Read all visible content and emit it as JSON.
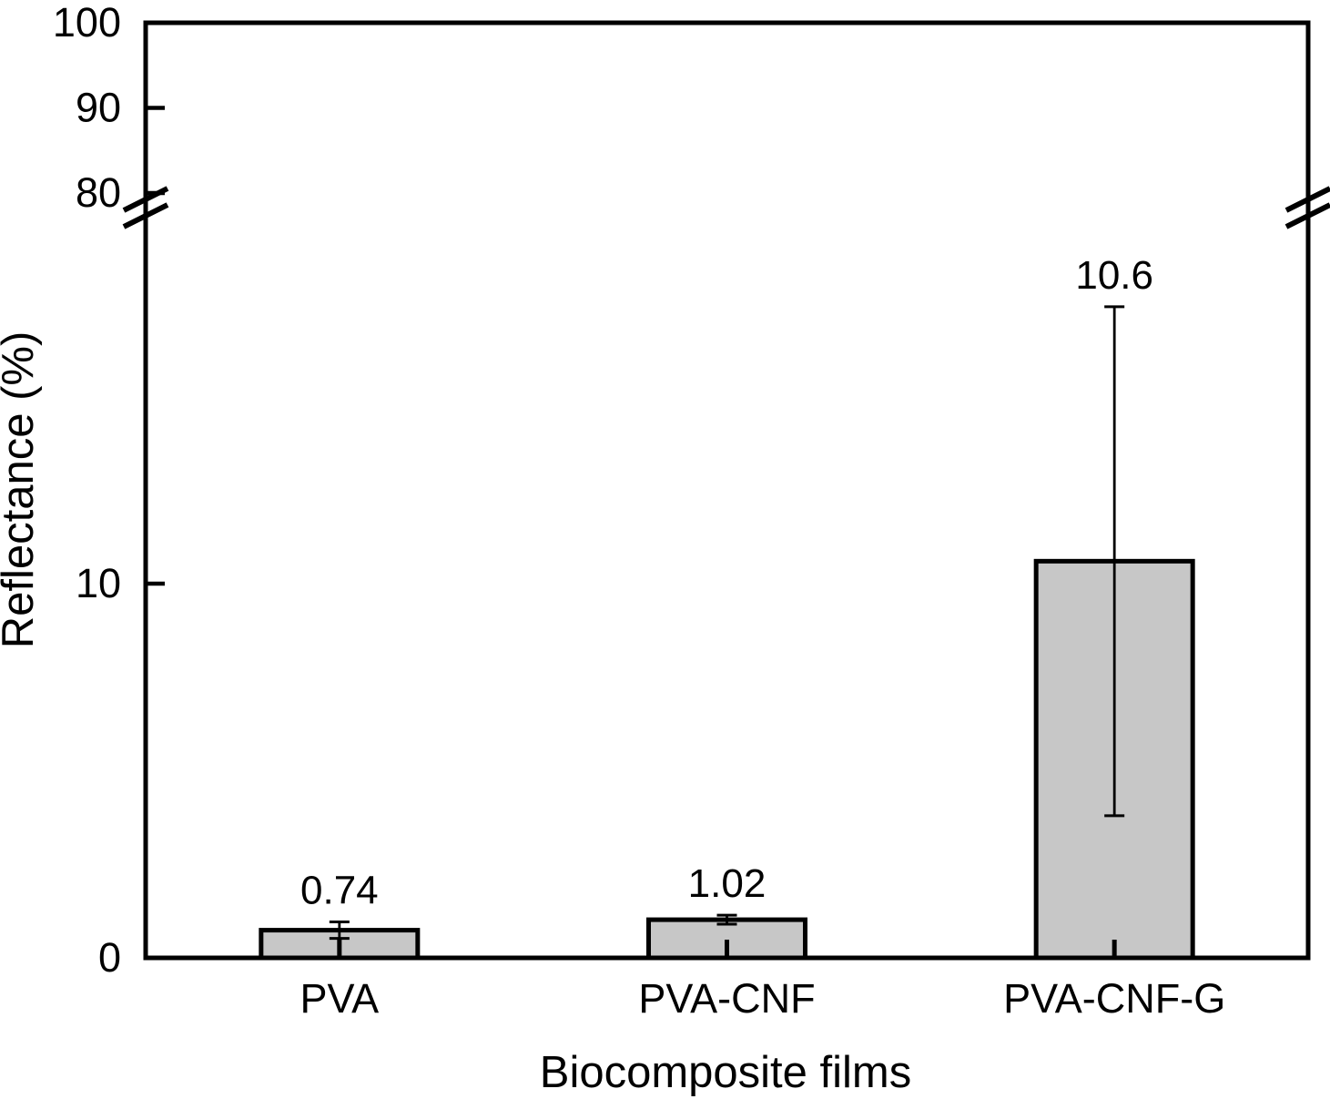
{
  "figure": {
    "background": "#ffffff",
    "ink_color": "#000000"
  },
  "chart_data": {
    "type": "bar",
    "title": "",
    "xlabel": "Biocomposite films",
    "ylabel": "Reflectance (%)",
    "categories": [
      "PVA",
      "PVA-CNF",
      "PVA-CNF-G"
    ],
    "values": [
      0.74,
      1.02,
      10.6
    ],
    "value_labels": [
      "0.74",
      "1.02",
      "10.6"
    ],
    "error_bars": [
      0.22,
      0.12,
      6.8
    ],
    "bar_fill": "#c7c7c7",
    "bar_edge": "#000000",
    "grid": false,
    "axis_break": {
      "enabled": true,
      "between": [
        20,
        80
      ]
    },
    "y_axis": {
      "segments": [
        {
          "range": [
            0,
            20
          ],
          "ticks": [
            0,
            10
          ]
        },
        {
          "range": [
            80,
            100
          ],
          "ticks": [
            80,
            90,
            100
          ]
        }
      ]
    }
  }
}
